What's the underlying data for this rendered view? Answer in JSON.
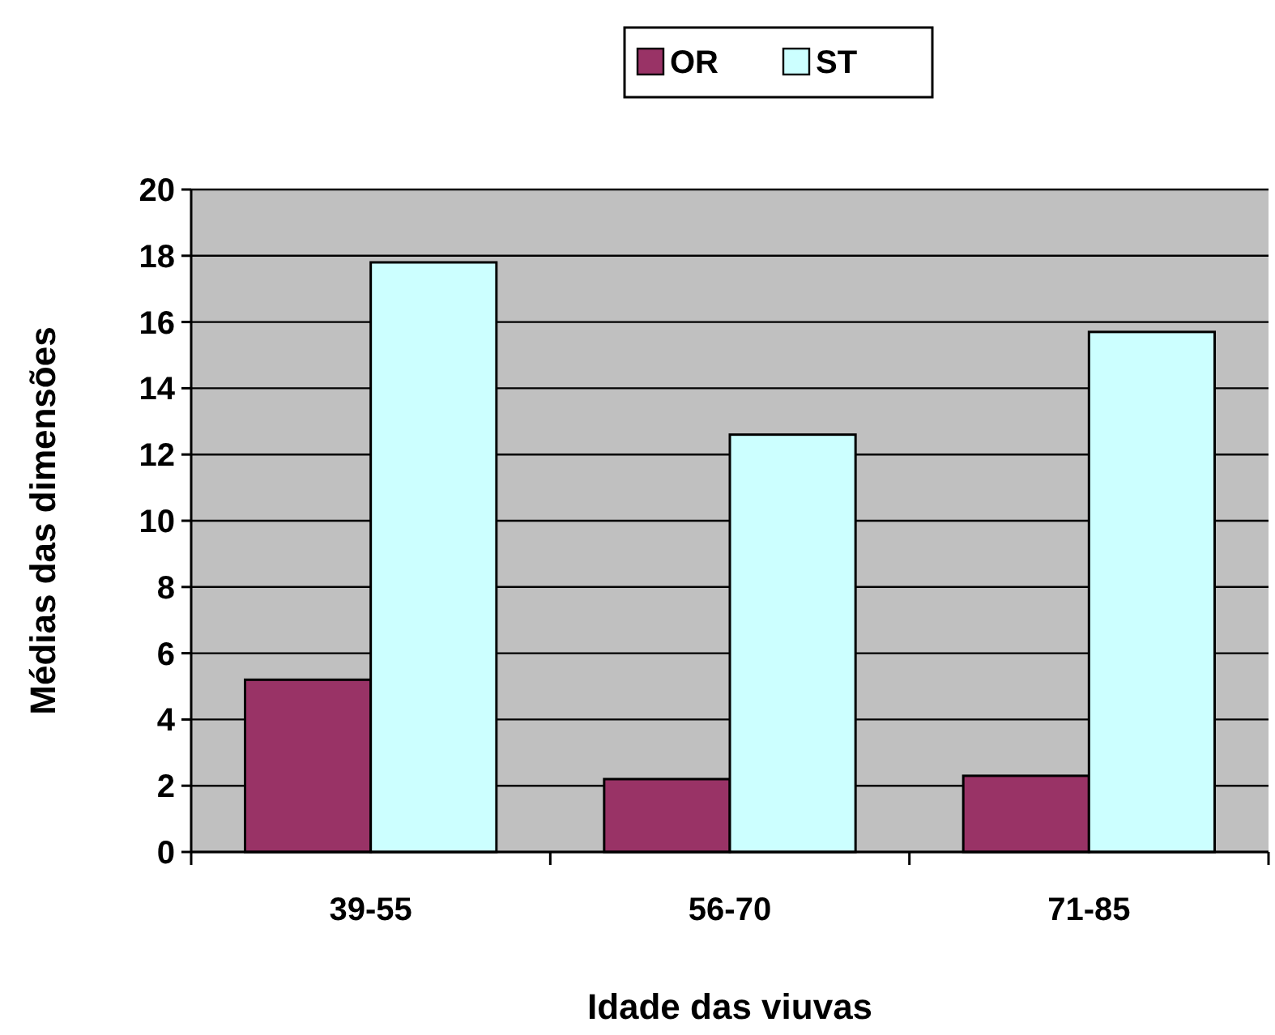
{
  "chart_data": {
    "type": "bar",
    "xlabel": "Idade das viuvas",
    "ylabel": "Médias das dimensões",
    "categories": [
      "39-55",
      "56-70",
      "71-85"
    ],
    "series": [
      {
        "name": "OR",
        "color": "#993366",
        "values": [
          5.2,
          2.2,
          2.3
        ]
      },
      {
        "name": "ST",
        "color": "#ccffff",
        "values": [
          17.8,
          12.6,
          15.7
        ]
      }
    ],
    "ylim": [
      0,
      20
    ],
    "yticks": [
      0,
      2,
      4,
      6,
      8,
      10,
      12,
      14,
      16,
      18,
      20
    ],
    "grid": "y",
    "legend": "top"
  }
}
